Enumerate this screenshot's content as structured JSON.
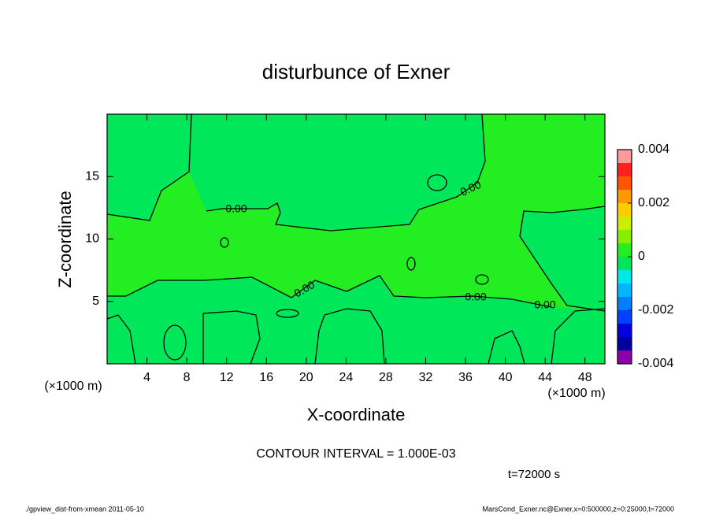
{
  "chart_data": {
    "type": "contour",
    "title": "disturbunce of Exner",
    "xlabel": "X-coordinate",
    "ylabel": "Z-coordinate",
    "xunit": "(×1000 m)",
    "yunit": "(×1000 m)",
    "xlim": [
      0,
      50
    ],
    "xticks": [
      4,
      8,
      12,
      16,
      20,
      24,
      28,
      32,
      36,
      40,
      44,
      48
    ],
    "ylim": [
      0,
      20
    ],
    "yticks": [
      5,
      10,
      15
    ],
    "colorbar": {
      "lim": [
        -0.004,
        0.004
      ],
      "ticks": [
        -0.004,
        -0.002,
        0,
        0.002,
        0.004
      ],
      "levels": [
        -0.004,
        -0.0035,
        -0.003,
        -0.0025,
        -0.002,
        -0.0015,
        -0.001,
        -0.0005,
        0,
        0.0005,
        0.001,
        0.0015,
        0.002,
        0.0025,
        0.003,
        0.0035,
        0.004
      ],
      "colors": [
        "#8b00a8",
        "#0000a0",
        "#0000e0",
        "#0040ff",
        "#0080ff",
        "#00b8ff",
        "#00e8e8",
        "#00e85a",
        "#22ee22",
        "#88ee00",
        "#ccee00",
        "#ffcc00",
        "#ff9900",
        "#ff5500",
        "#ff2020",
        "#ff9a9a"
      ]
    },
    "contour_labels": [
      "0.00",
      "0.00",
      "0.00",
      "0.00",
      "0.00"
    ],
    "annotation": "CONTOUR INTERVAL = 1.000E-03",
    "time": "t=72000 s",
    "footer_left": "./gpview_dist-from-xmean  2011-05-10",
    "footer_right": "MarsCond_Exner.nc@Exner,x=0:500000,z=0:25000,t=72000"
  }
}
